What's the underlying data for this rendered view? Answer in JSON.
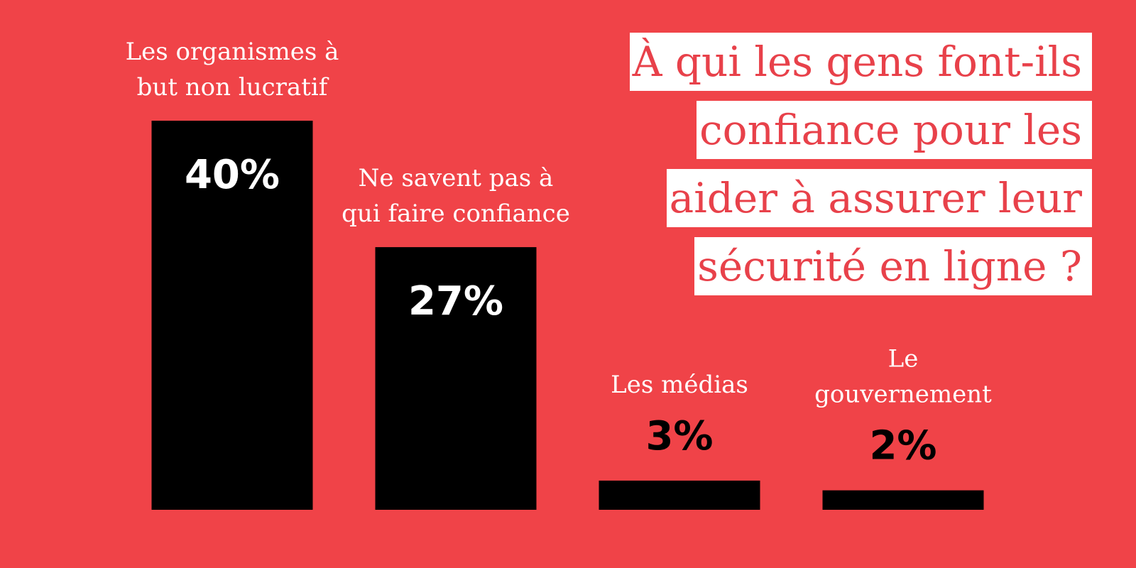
{
  "chart_data": {
    "type": "bar",
    "title": [
      "À qui les gens font-ils",
      "confiance pour les",
      "aider à assurer leur",
      "sécurité en ligne ?"
    ],
    "categories": [
      [
        "Les organismes à",
        "but non lucratif"
      ],
      [
        "Ne savent pas à",
        "qui faire confiance"
      ],
      [
        "Les médias"
      ],
      [
        "Le",
        "gouvernement"
      ]
    ],
    "values": [
      40,
      27,
      3,
      2
    ],
    "value_labels": [
      "40%",
      "27%",
      "3%",
      "2%"
    ],
    "color": "#000000"
  }
}
